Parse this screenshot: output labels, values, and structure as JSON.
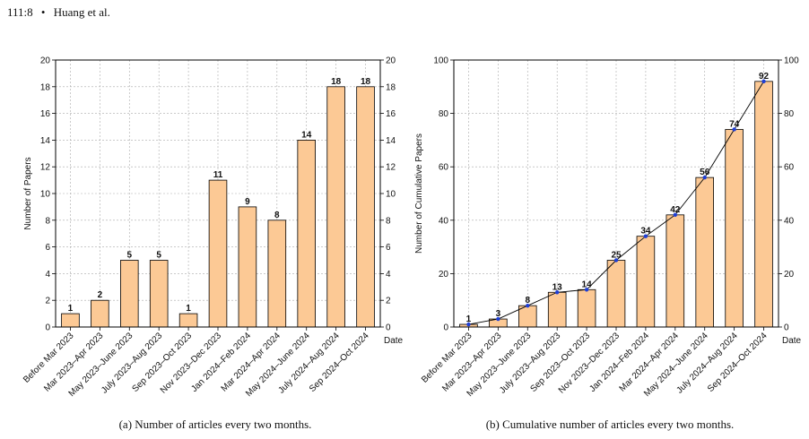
{
  "header": {
    "page_ref": "111:8",
    "bullet": "•",
    "authors": "Huang et al."
  },
  "captions": {
    "a": "(a)  Number of articles every two months.",
    "b": "(b)  Cumulative number of articles every two months."
  },
  "chart_data": [
    {
      "type": "bar",
      "categories": [
        "Before Mar 2023",
        "Mar 2023–Apr 2023",
        "May 2023–June 2023",
        "July 2023–Aug 2023",
        "Sep 2023–Oct 2023",
        "Nov 2023–Dec 2023",
        "Jan 2024–Feb 2024",
        "Mar 2024–Apr 2024",
        "May 2024–June 2024",
        "July 2024–Aug 2024",
        "Sep 2024–Oct 2024"
      ],
      "values": [
        1,
        2,
        5,
        5,
        1,
        11,
        9,
        8,
        14,
        18,
        18
      ],
      "ylabel": "Number of Papers",
      "xlabel": "Date",
      "ylim": [
        0,
        20
      ],
      "yticks": [
        0,
        2,
        4,
        6,
        8,
        10,
        12,
        14,
        16,
        18,
        20
      ],
      "grid": true,
      "bar_color": "#fcc995"
    },
    {
      "type": "bar",
      "categories": [
        "Before Mar 2023",
        "Mar 2023–Apr 2023",
        "May 2023–June 2023",
        "July 2023–Aug 2023",
        "Sep 2023–Oct 2023",
        "Nov 2023–Dec 2023",
        "Jan 2024–Feb 2024",
        "Mar 2024–Apr 2024",
        "May 2024–June 2024",
        "July 2024–Aug 2024",
        "Sep 2024–Oct 2024"
      ],
      "values": [
        1,
        3,
        8,
        13,
        14,
        25,
        34,
        42,
        56,
        74,
        92
      ],
      "line_overlay": true,
      "ylabel": "Number of Cumulative Papers",
      "xlabel": "Date",
      "ylim": [
        0,
        100
      ],
      "yticks": [
        0,
        20,
        40,
        60,
        80,
        100
      ],
      "grid": true,
      "bar_color": "#fcc995",
      "line_color": "#000000",
      "marker_color": "#1f3fd6"
    }
  ]
}
